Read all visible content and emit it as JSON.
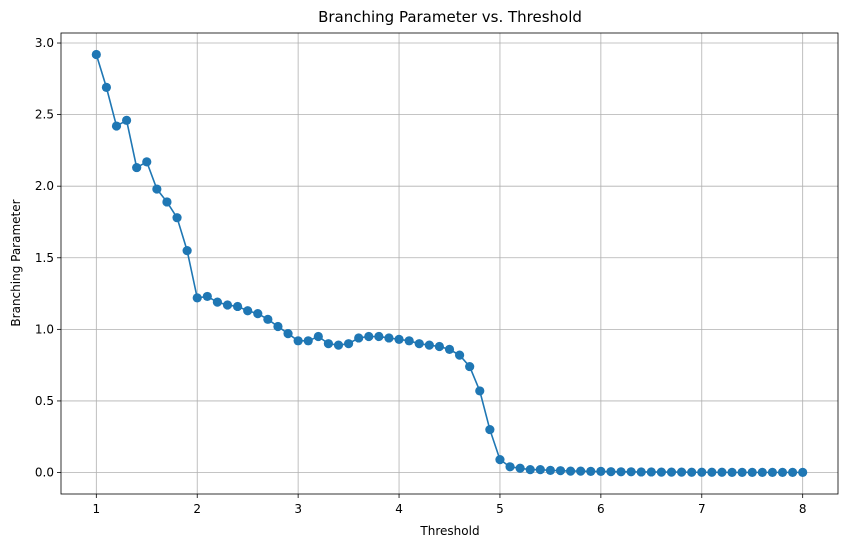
{
  "chart_data": {
    "type": "line",
    "title": "Branching Parameter vs. Threshold",
    "xlabel": "Threshold",
    "ylabel": "Branching Parameter",
    "xlim": [
      0.65,
      8.35
    ],
    "ylim": [
      -0.15,
      3.07
    ],
    "grid": true,
    "marker": "circle",
    "color": "#1f77b4",
    "x_ticks": [
      1,
      2,
      3,
      4,
      5,
      6,
      7,
      8
    ],
    "x_tick_labels": [
      "1",
      "2",
      "3",
      "4",
      "5",
      "6",
      "7",
      "8"
    ],
    "y_ticks": [
      0.0,
      0.5,
      1.0,
      1.5,
      2.0,
      2.5,
      3.0
    ],
    "y_tick_labels": [
      "0.0",
      "0.5",
      "1.0",
      "1.5",
      "2.0",
      "2.5",
      "3.0"
    ],
    "x": [
      1.0,
      1.1,
      1.2,
      1.3,
      1.4,
      1.5,
      1.6,
      1.7,
      1.8,
      1.9,
      2.0,
      2.1,
      2.2,
      2.3,
      2.4,
      2.5,
      2.6,
      2.7,
      2.8,
      2.9,
      3.0,
      3.1,
      3.2,
      3.3,
      3.4,
      3.5,
      3.6,
      3.7,
      3.8,
      3.9,
      4.0,
      4.1,
      4.2,
      4.3,
      4.4,
      4.5,
      4.6,
      4.7,
      4.8,
      4.9,
      5.0,
      5.1,
      5.2,
      5.3,
      5.4,
      5.5,
      5.6,
      5.7,
      5.8,
      5.9,
      6.0,
      6.1,
      6.2,
      6.3,
      6.4,
      6.5,
      6.6,
      6.7,
      6.8,
      6.9,
      7.0,
      7.1,
      7.2,
      7.3,
      7.4,
      7.5,
      7.6,
      7.7,
      7.8,
      7.9,
      8.0
    ],
    "y": [
      2.92,
      2.69,
      2.42,
      2.46,
      2.13,
      2.17,
      1.98,
      1.89,
      1.78,
      1.55,
      1.22,
      1.23,
      1.19,
      1.17,
      1.16,
      1.13,
      1.11,
      1.07,
      1.02,
      0.97,
      0.92,
      0.92,
      0.95,
      0.9,
      0.89,
      0.9,
      0.94,
      0.95,
      0.95,
      0.94,
      0.93,
      0.92,
      0.9,
      0.89,
      0.88,
      0.86,
      0.82,
      0.74,
      0.57,
      0.3,
      0.09,
      0.04,
      0.03,
      0.02,
      0.02,
      0.015,
      0.013,
      0.01,
      0.01,
      0.008,
      0.008,
      0.006,
      0.005,
      0.005,
      0.004,
      0.004,
      0.003,
      0.003,
      0.003,
      0.002,
      0.002,
      0.002,
      0.002,
      0.001,
      0.001,
      0.001,
      0.001,
      0.001,
      0.001,
      0.001,
      0.001
    ]
  }
}
